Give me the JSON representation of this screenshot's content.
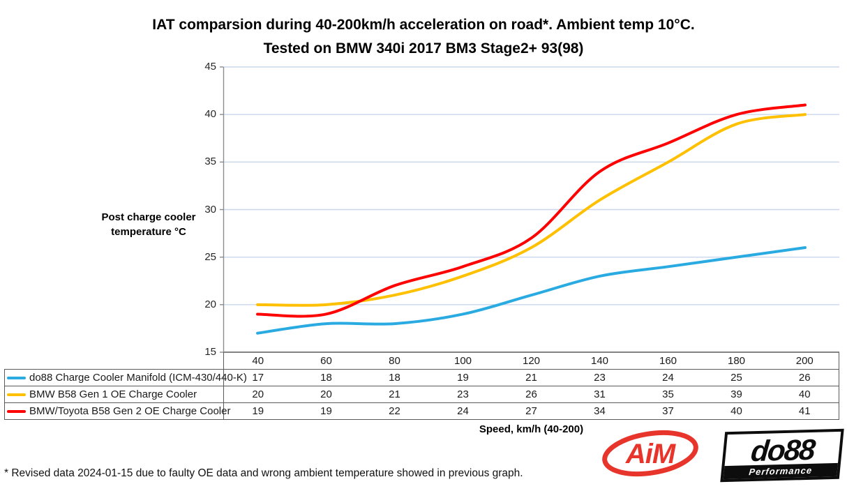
{
  "title": {
    "line1": "IAT comparsion during 40-200km/h acceleration on road*. Ambient temp 10°C.",
    "line2": "Tested on BMW 340i 2017 BM3 Stage2+ 93(98)"
  },
  "y_axis": {
    "label_line1": "Post charge cooler",
    "label_line2": "temperature °C"
  },
  "x_axis": {
    "label": "Speed, km/h (40-200)"
  },
  "chart_data": {
    "type": "line",
    "title": "IAT comparsion during 40-200km/h acceleration on road*. Ambient temp 10°C. Tested on BMW 340i 2017 BM3 Stage2+ 93(98)",
    "xlabel": "Speed, km/h (40-200)",
    "ylabel": "Post charge cooler temperature °C",
    "x": [
      40,
      60,
      80,
      100,
      120,
      140,
      160,
      180,
      200
    ],
    "series": [
      {
        "name": "do88 Charge Cooler Manifold (ICM-430/440-K)",
        "color": "#29abe2",
        "values": [
          17,
          18,
          18,
          19,
          21,
          23,
          24,
          25,
          26
        ]
      },
      {
        "name": "BMW B58 Gen 1 OE Charge Cooler",
        "color": "#ffc000",
        "values": [
          20,
          20,
          21,
          23,
          26,
          31,
          35,
          39,
          40
        ]
      },
      {
        "name": "BMW/Toyota B58 Gen 2 OE Charge Cooler",
        "color": "#ff0000",
        "values": [
          19,
          19,
          22,
          24,
          27,
          34,
          37,
          40,
          41
        ]
      }
    ],
    "ylim": [
      15,
      45
    ],
    "yticks": [
      45,
      40,
      35,
      30,
      25,
      20,
      15
    ],
    "grid": true,
    "legend_position": "table-left-of-data-rows"
  },
  "footnote": "* Revised data 2024-01-15 due to faulty OE data and wrong ambient temperature showed in previous graph.",
  "logos": {
    "aim": {
      "text": "AiM",
      "color": "#e8352b"
    },
    "do88": {
      "text": "do88",
      "sub": "Performance"
    }
  },
  "colors": {
    "gridline": "#c9d6ec",
    "axis": "#8c8c8c",
    "table_border": "#5a5a5a"
  }
}
